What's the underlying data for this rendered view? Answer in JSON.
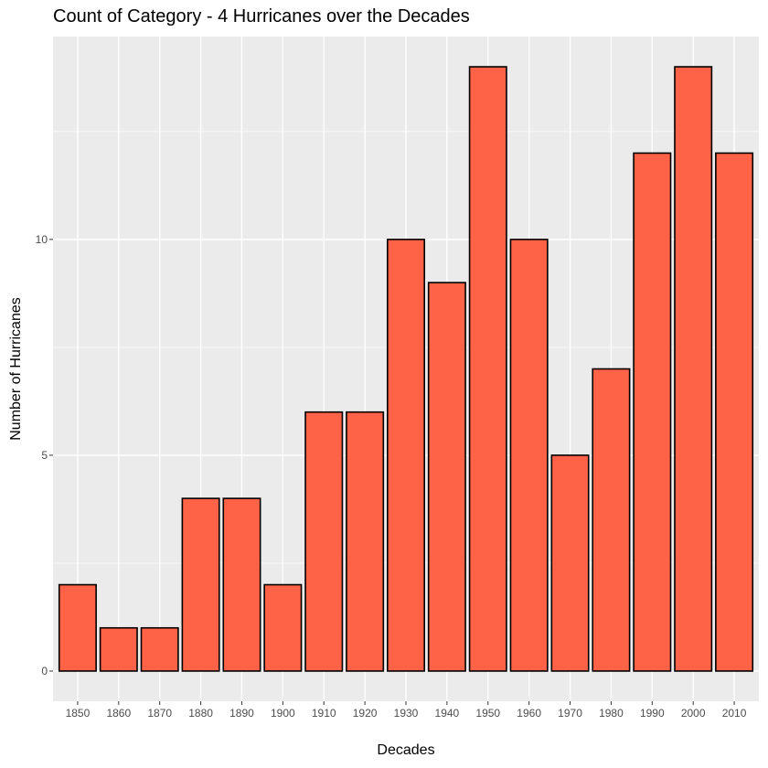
{
  "chart_data": {
    "type": "bar",
    "title": "Count of Category - 4 Hurricanes over the Decades",
    "xlabel": "Decades",
    "ylabel": "Number of Hurricanes",
    "categories": [
      "1850",
      "1860",
      "1870",
      "1880",
      "1890",
      "1900",
      "1910",
      "1920",
      "1930",
      "1940",
      "1950",
      "1960",
      "1970",
      "1980",
      "1990",
      "2000",
      "2010"
    ],
    "values": [
      2,
      1,
      1,
      4,
      4,
      2,
      6,
      6,
      10,
      9,
      14,
      10,
      5,
      7,
      12,
      14,
      12
    ],
    "ylim": [
      -0.7,
      14.7
    ],
    "yticks": [
      0,
      5,
      10
    ],
    "y_minor_ticks": [
      2.5,
      7.5,
      12.5
    ],
    "grid": true,
    "colors": {
      "panel_background": "#ebebeb",
      "grid": "#ffffff",
      "bar_fill": "#ff6347",
      "bar_stroke": "#000000",
      "tick_text": "#4d4d4d",
      "tick_mark": "#333333"
    }
  }
}
